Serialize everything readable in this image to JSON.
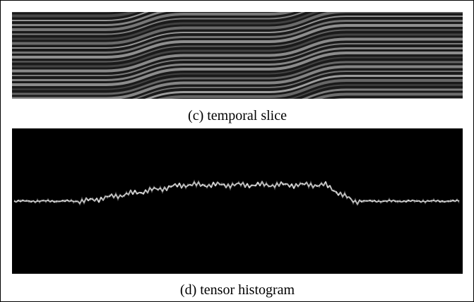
{
  "panels": [
    {
      "caption": "(c) temporal slice"
    },
    {
      "caption": "(d) tensor histogram"
    }
  ]
}
